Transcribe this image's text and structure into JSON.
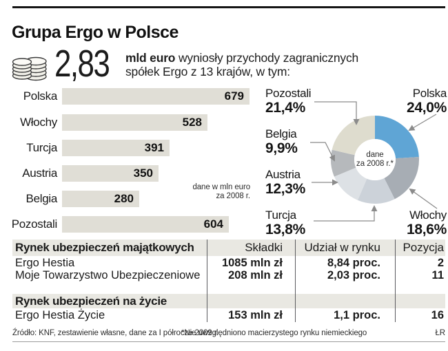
{
  "page": {
    "title": "Grupa Ergo w Polsce"
  },
  "lead": {
    "value": "2,83",
    "unit": "mld euro",
    "line1_rest": " wyniosły przychody zagranicznych",
    "line2": "spółek Ergo z 13 krajów, w tym:"
  },
  "chart_data": [
    {
      "type": "bar",
      "orientation": "horizontal",
      "categories": [
        "Polska",
        "Włochy",
        "Turcja",
        "Austria",
        "Belgia",
        "Pozostali"
      ],
      "values": [
        679,
        528,
        391,
        350,
        280,
        604
      ],
      "xlim": [
        0,
        700
      ],
      "bar_color": "#e0ded6",
      "note_line1": "dane w mln euro",
      "note_line2": "za 2008 r."
    },
    {
      "type": "pie",
      "donut": true,
      "start_angle_deg": 0,
      "direction": "clockwise",
      "labels": [
        "Polska",
        "Włochy",
        "Turcja",
        "Austria",
        "Belgia",
        "Pozostali"
      ],
      "values": [
        24.0,
        18.6,
        13.8,
        12.3,
        9.9,
        21.4
      ],
      "display": [
        "24,0%",
        "18,6%",
        "13,8%",
        "12,3%",
        "9,9%",
        "21,4%"
      ],
      "colors": [
        "#5fa5d5",
        "#a7adb4",
        "#ccd2d9",
        "#dde1e5",
        "#b6b9bc",
        "#dedcce"
      ],
      "center_line1": "dane",
      "center_line2": "za 2008 r.*"
    }
  ],
  "table": {
    "col_headers": [
      "Składki",
      "Udział w rynku",
      "Pozycja"
    ],
    "sections": [
      {
        "title": "Rynek ubezpieczeń majątkowych",
        "rows": [
          {
            "name": "Ergo Hestia",
            "skladki": "1085 mln zł",
            "udzial": "8,84 proc.",
            "pozycja": "2"
          },
          {
            "name": "Moje Towarzystwo Ubezpieczeniowe",
            "skladki": "208 mln zł",
            "udzial": "2,03 proc.",
            "pozycja": "11"
          }
        ]
      },
      {
        "title": "Rynek ubezpieczeń na życie",
        "rows": [
          {
            "name": "Ergo Hestia Życie",
            "skladki": "153 mln zł",
            "udzial": "1,1 proc.",
            "pozycja": "16"
          }
        ]
      }
    ]
  },
  "footer": {
    "source": "Źródło: KNF, zestawienie własne, dane za I półrocze 2009 r.",
    "footnote": "*Nie uwzględniono macierzystego rynku niemieckiego",
    "credit": "ŁR"
  }
}
